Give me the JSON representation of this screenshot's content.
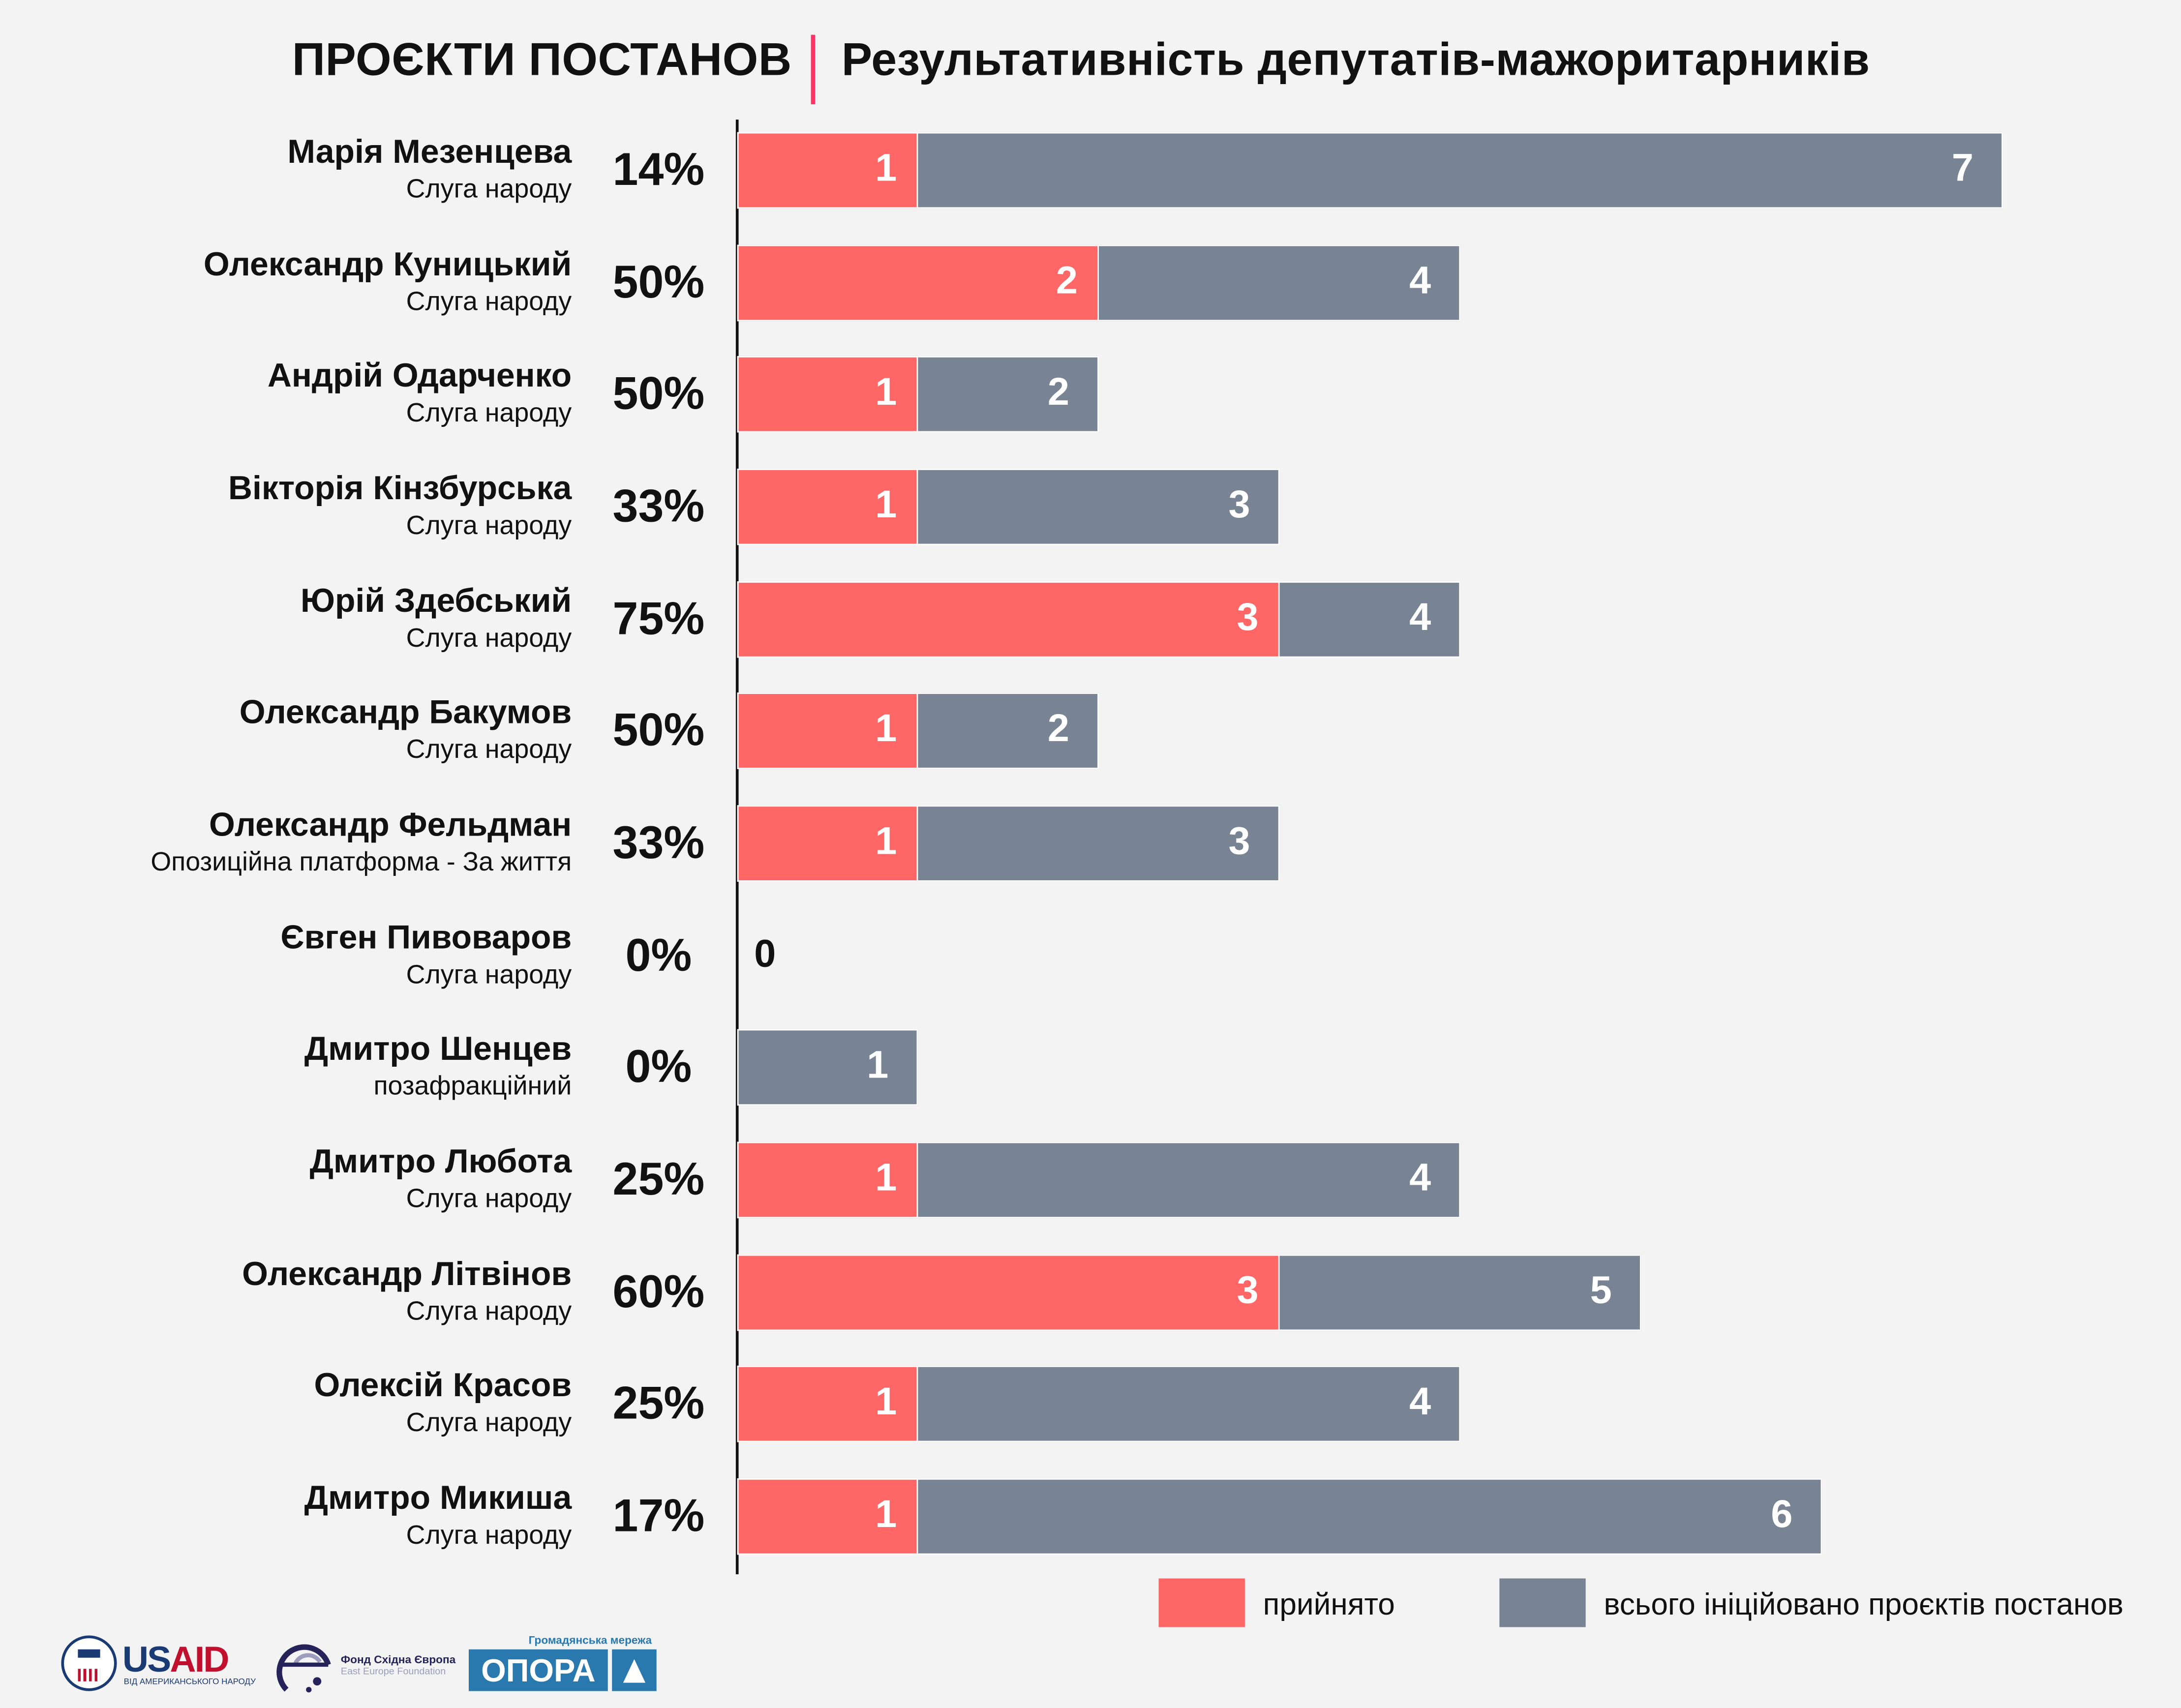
{
  "title": {
    "left": "ПРОЄКТИ ПОСТАНОВ",
    "right": "Результативність депутатів-мажоритарників"
  },
  "colors": {
    "accepted": "#ff6666",
    "total": "#788393",
    "divider": "#ff3366"
  },
  "chart_data": {
    "type": "bar",
    "orientation": "horizontal",
    "title": "Результативність депутатів-мажоритарників",
    "categories": [
      {
        "name": "Марія Мезенцева",
        "party": "Слуга народу",
        "percent": "14%"
      },
      {
        "name": "Олександр Куницький",
        "party": "Слуга народу",
        "percent": "50%"
      },
      {
        "name": "Андрій Одарченко",
        "party": "Слуга народу",
        "percent": "50%"
      },
      {
        "name": "Вікторія Кінзбурська",
        "party": "Слуга народу",
        "percent": "33%"
      },
      {
        "name": "Юрій Здебський",
        "party": "Слуга народу",
        "percent": "75%"
      },
      {
        "name": "Олександр Бакумов",
        "party": "Слуга народу",
        "percent": "50%"
      },
      {
        "name": "Олександр Фельдман",
        "party": "Опозиційна платформа - За життя",
        "percent": "33%"
      },
      {
        "name": "Євген Пивоваров",
        "party": "Слуга народу",
        "percent": "0%"
      },
      {
        "name": "Дмитро Шенцев",
        "party": "позафракційний",
        "percent": "0%"
      },
      {
        "name": "Дмитро Любота",
        "party": "Слуга народу",
        "percent": "25%"
      },
      {
        "name": "Олександр Літвінов",
        "party": "Слуга народу",
        "percent": "60%"
      },
      {
        "name": "Олексій Красов",
        "party": "Слуга народу",
        "percent": "25%"
      },
      {
        "name": "Дмитро Микиша",
        "party": "Слуга народу",
        "percent": "17%"
      }
    ],
    "series": [
      {
        "name": "прийнято",
        "values": [
          1,
          2,
          1,
          1,
          3,
          1,
          1,
          0,
          0,
          1,
          3,
          1,
          1
        ]
      },
      {
        "name": "всього ініційовано проєктів постанов",
        "values": [
          7,
          4,
          2,
          3,
          4,
          2,
          3,
          0,
          1,
          4,
          5,
          4,
          6
        ]
      }
    ],
    "xlim": [
      0,
      7
    ],
    "legend": "bottom-right"
  },
  "legend": {
    "accepted": "прийнято",
    "total": "всього ініційовано проєктів постанов"
  },
  "logos": {
    "usaid": "USAID",
    "usaid_sub": "ВІД АМЕРИКАНСЬКОГО НАРОДУ",
    "eef": "Фонд Східна Європа",
    "eef_sub": "East Europe Foundation",
    "opora_top": "Громадянська мережа",
    "opora": "ОПОРА"
  }
}
